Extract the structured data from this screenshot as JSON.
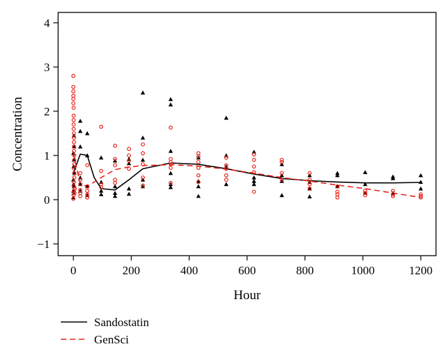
{
  "chart_data": {
    "type": "scatter",
    "xlabel": "Hour",
    "ylabel": "Concentration",
    "xlim": [
      0,
      1220
    ],
    "ylim": [
      -1.2,
      4.2
    ],
    "x_ticks": [
      0,
      200,
      400,
      600,
      800,
      1000,
      1200
    ],
    "y_ticks": [
      -1,
      0,
      1,
      2,
      3,
      4
    ],
    "x_tick_labels": [
      "0",
      "200",
      "400",
      "600",
      "800",
      "1000",
      "1200"
    ],
    "y_tick_labels": [
      "−1",
      "0",
      "1",
      "2",
      "3",
      "4"
    ],
    "grid": false,
    "legend_position": "bottom-left",
    "series": [
      {
        "name": "Sandostatin",
        "color": "#000000",
        "marker": "triangle",
        "line_style": "solid",
        "points": [
          [
            0,
            0.05
          ],
          [
            1,
            0.15
          ],
          [
            2,
            0.3
          ],
          [
            0,
            0.45
          ],
          [
            3,
            0.6
          ],
          [
            1,
            0.75
          ],
          [
            2,
            0.9
          ],
          [
            0,
            1.05
          ],
          [
            3,
            1.2
          ],
          [
            2,
            1.45
          ],
          [
            0,
            0.2
          ],
          [
            1,
            0.35
          ],
          [
            24,
            1.78
          ],
          [
            24,
            1.55
          ],
          [
            24,
            1.2
          ],
          [
            24,
            0.5
          ],
          [
            24,
            0.35
          ],
          [
            24,
            0.2
          ],
          [
            48,
            1.5
          ],
          [
            48,
            1.0
          ],
          [
            48,
            0.3
          ],
          [
            48,
            0.1
          ],
          [
            96,
            0.95
          ],
          [
            96,
            0.4
          ],
          [
            96,
            0.2
          ],
          [
            96,
            0.12
          ],
          [
            144,
            0.88
          ],
          [
            144,
            0.3
          ],
          [
            144,
            0.15
          ],
          [
            144,
            0.08
          ],
          [
            192,
            0.92
          ],
          [
            192,
            0.82
          ],
          [
            192,
            0.25
          ],
          [
            192,
            0.13
          ],
          [
            240,
            2.42
          ],
          [
            240,
            1.4
          ],
          [
            240,
            0.9
          ],
          [
            240,
            0.45
          ],
          [
            240,
            0.3
          ],
          [
            336,
            2.27
          ],
          [
            336,
            2.15
          ],
          [
            336,
            1.1
          ],
          [
            336,
            0.6
          ],
          [
            336,
            0.35
          ],
          [
            336,
            0.28
          ],
          [
            432,
            0.95
          ],
          [
            432,
            0.42
          ],
          [
            432,
            0.3
          ],
          [
            432,
            0.08
          ],
          [
            528,
            1.85
          ],
          [
            528,
            1.0
          ],
          [
            528,
            0.75
          ],
          [
            528,
            0.35
          ],
          [
            624,
            1.08
          ],
          [
            624,
            0.5
          ],
          [
            624,
            0.42
          ],
          [
            624,
            0.35
          ],
          [
            720,
            0.8
          ],
          [
            720,
            0.55
          ],
          [
            720,
            0.42
          ],
          [
            720,
            0.1
          ],
          [
            816,
            0.55
          ],
          [
            816,
            0.4
          ],
          [
            816,
            0.25
          ],
          [
            816,
            0.07
          ],
          [
            912,
            0.6
          ],
          [
            912,
            0.55
          ],
          [
            912,
            0.3
          ],
          [
            1008,
            0.62
          ],
          [
            1008,
            0.35
          ],
          [
            1008,
            0.15
          ],
          [
            1104,
            0.52
          ],
          [
            1104,
            0.48
          ],
          [
            1104,
            0.15
          ],
          [
            1200,
            0.55
          ],
          [
            1200,
            0.4
          ],
          [
            1200,
            0.25
          ]
        ],
        "curve": [
          [
            0,
            0.6
          ],
          [
            24,
            1.03
          ],
          [
            48,
            1.0
          ],
          [
            72,
            0.5
          ],
          [
            96,
            0.25
          ],
          [
            144,
            0.22
          ],
          [
            192,
            0.45
          ],
          [
            240,
            0.7
          ],
          [
            336,
            0.83
          ],
          [
            432,
            0.8
          ],
          [
            528,
            0.7
          ],
          [
            624,
            0.58
          ],
          [
            720,
            0.48
          ],
          [
            816,
            0.43
          ],
          [
            912,
            0.4
          ],
          [
            1008,
            0.38
          ],
          [
            1104,
            0.38
          ],
          [
            1200,
            0.39
          ]
        ]
      },
      {
        "name": "GenSci",
        "color": "#e8231b",
        "marker": "circle",
        "line_style": "dashed",
        "points": [
          [
            0,
            2.8
          ],
          [
            0,
            2.55
          ],
          [
            0,
            2.45
          ],
          [
            0,
            2.35
          ],
          [
            0,
            2.28
          ],
          [
            0,
            2.18
          ],
          [
            1,
            2.08
          ],
          [
            1,
            1.9
          ],
          [
            1,
            1.8
          ],
          [
            1,
            1.7
          ],
          [
            1,
            1.6
          ],
          [
            2,
            1.5
          ],
          [
            2,
            1.4
          ],
          [
            2,
            1.3
          ],
          [
            2,
            1.2
          ],
          [
            2,
            1.1
          ],
          [
            3,
            1.0
          ],
          [
            3,
            0.9
          ],
          [
            3,
            0.8
          ],
          [
            3,
            0.7
          ],
          [
            3,
            0.6
          ],
          [
            3,
            0.5
          ],
          [
            2,
            0.4
          ],
          [
            2,
            0.3
          ],
          [
            2,
            0.2
          ],
          [
            1,
            0.1
          ],
          [
            0,
            0.02
          ],
          [
            4,
            0.15
          ],
          [
            5,
            0.25
          ],
          [
            24,
            0.6
          ],
          [
            24,
            0.45
          ],
          [
            24,
            0.35
          ],
          [
            24,
            0.22
          ],
          [
            24,
            0.15
          ],
          [
            24,
            0.08
          ],
          [
            48,
            0.78
          ],
          [
            48,
            0.3
          ],
          [
            48,
            0.2
          ],
          [
            48,
            0.12
          ],
          [
            48,
            0.05
          ],
          [
            96,
            1.65
          ],
          [
            96,
            0.65
          ],
          [
            96,
            0.35
          ],
          [
            96,
            0.28
          ],
          [
            144,
            1.22
          ],
          [
            144,
            0.92
          ],
          [
            144,
            0.78
          ],
          [
            144,
            0.45
          ],
          [
            144,
            0.38
          ],
          [
            192,
            1.15
          ],
          [
            192,
            1.0
          ],
          [
            192,
            0.88
          ],
          [
            192,
            0.7
          ],
          [
            240,
            1.25
          ],
          [
            240,
            1.05
          ],
          [
            240,
            0.8
          ],
          [
            240,
            0.5
          ],
          [
            240,
            0.32
          ],
          [
            336,
            1.63
          ],
          [
            336,
            0.92
          ],
          [
            336,
            0.85
          ],
          [
            336,
            0.8
          ],
          [
            336,
            0.72
          ],
          [
            336,
            0.38
          ],
          [
            432,
            1.05
          ],
          [
            432,
            0.98
          ],
          [
            432,
            0.85
          ],
          [
            432,
            0.72
          ],
          [
            432,
            0.55
          ],
          [
            432,
            0.4
          ],
          [
            528,
            0.95
          ],
          [
            528,
            0.78
          ],
          [
            528,
            0.7
          ],
          [
            528,
            0.55
          ],
          [
            528,
            0.45
          ],
          [
            624,
            1.02
          ],
          [
            624,
            0.9
          ],
          [
            624,
            0.75
          ],
          [
            624,
            0.62
          ],
          [
            624,
            0.18
          ],
          [
            720,
            0.9
          ],
          [
            720,
            0.85
          ],
          [
            720,
            0.6
          ],
          [
            720,
            0.45
          ],
          [
            816,
            0.6
          ],
          [
            816,
            0.45
          ],
          [
            816,
            0.35
          ],
          [
            816,
            0.25
          ],
          [
            912,
            0.3
          ],
          [
            912,
            0.18
          ],
          [
            912,
            0.12
          ],
          [
            912,
            0.05
          ],
          [
            1008,
            0.2
          ],
          [
            1008,
            0.15
          ],
          [
            1008,
            0.1
          ],
          [
            1104,
            0.2
          ],
          [
            1104,
            0.12
          ],
          [
            1104,
            0.08
          ],
          [
            1200,
            0.12
          ],
          [
            1200,
            0.08
          ],
          [
            1200,
            0.05
          ]
        ],
        "curve": [
          [
            0,
            1.05
          ],
          [
            24,
            0.35
          ],
          [
            48,
            0.3
          ],
          [
            96,
            0.5
          ],
          [
            144,
            0.68
          ],
          [
            192,
            0.74
          ],
          [
            240,
            0.77
          ],
          [
            336,
            0.79
          ],
          [
            432,
            0.76
          ],
          [
            528,
            0.69
          ],
          [
            624,
            0.6
          ],
          [
            720,
            0.5
          ],
          [
            816,
            0.42
          ],
          [
            912,
            0.33
          ],
          [
            1008,
            0.25
          ],
          [
            1104,
            0.15
          ],
          [
            1200,
            0.05
          ]
        ]
      }
    ]
  }
}
